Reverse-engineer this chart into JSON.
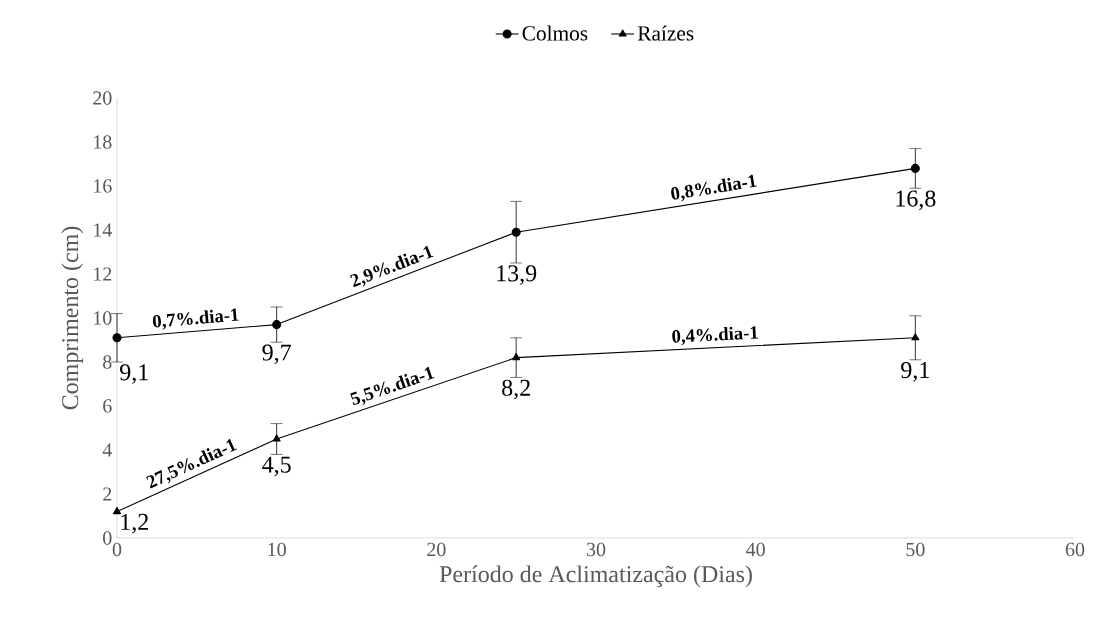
{
  "chart_data": {
    "type": "line",
    "xlabel": "Período de Aclimatização (Dias)",
    "ylabel": "Comprimento (cm)",
    "xlim": [
      0,
      60
    ],
    "xticks": [
      0,
      10,
      20,
      30,
      40,
      50,
      60
    ],
    "ylim": [
      0,
      20
    ],
    "yticks": [
      0,
      2,
      4,
      6,
      8,
      10,
      12,
      14,
      16,
      18,
      20
    ],
    "x": [
      0,
      10,
      25,
      50
    ],
    "grid": false,
    "legend": "top",
    "line_style": "solid",
    "series": [
      {
        "name": "Colmos",
        "color": "#000000",
        "marker": "circle",
        "values": [
          9.1,
          9.7,
          13.9,
          16.8
        ],
        "errors": [
          1.1,
          0.8,
          1.4,
          0.9
        ],
        "value_labels": [
          "9,1",
          "9,7",
          "13,9",
          "16,8"
        ]
      },
      {
        "name": "Raízes",
        "color": "#000000",
        "marker": "triangle",
        "values": [
          1.2,
          4.5,
          8.2,
          9.1
        ],
        "errors": [
          null,
          0.7,
          0.9,
          1.0
        ],
        "value_labels": [
          "1,2",
          "4,5",
          "8,2",
          "9,1"
        ]
      }
    ],
    "annotations": [
      {
        "text": "0,7%.dia-1",
        "x": 5,
        "y": 9.4
      },
      {
        "text": "2,9%.dia-1",
        "x": 17.5,
        "y": 11.8
      },
      {
        "text": "0,8%.dia-1",
        "x": 37.5,
        "y": 15.35
      },
      {
        "text": "27,5%.dia-1",
        "x": 5,
        "y": 2.85
      },
      {
        "text": "5,5%.dia-1",
        "x": 17.5,
        "y": 6.35
      },
      {
        "text": "0,4%.dia-1",
        "x": 37.5,
        "y": 8.65
      }
    ]
  }
}
